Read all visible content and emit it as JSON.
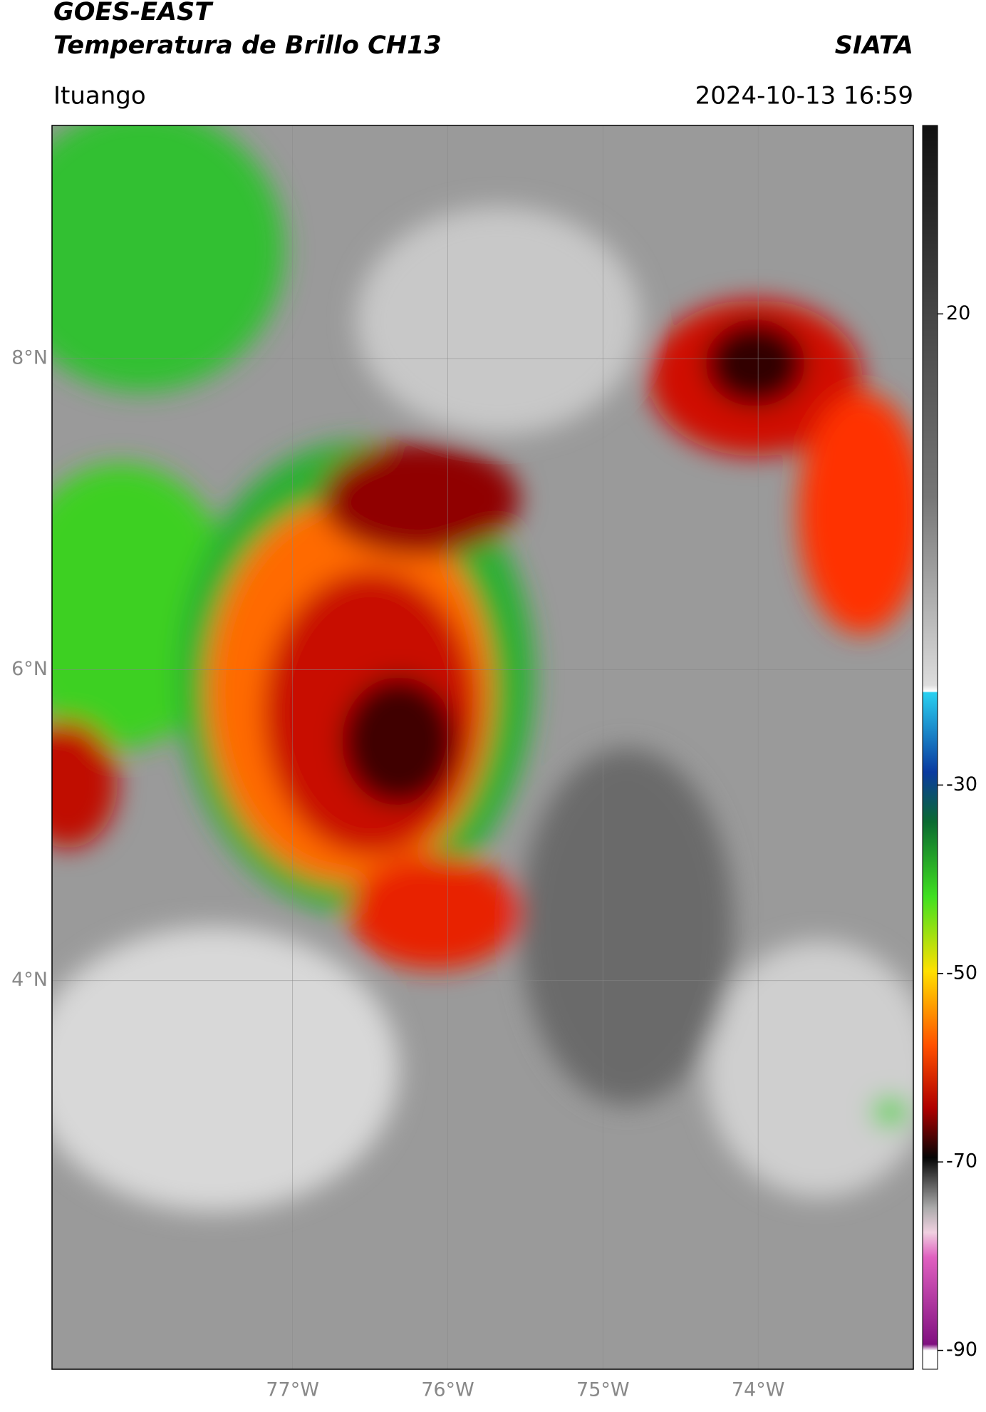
{
  "header": {
    "title_line1": "GOES-EAST",
    "title_line2": "Temperatura de Brillo CH13",
    "organization": "SIATA",
    "location": "Ituango",
    "datetime": "2024-10-13 16:59"
  },
  "map": {
    "xlim": [
      -78.55,
      -73
    ],
    "ylim": [
      1.5,
      9.5
    ],
    "xticks": [
      {
        "value": -77,
        "label": "77°W"
      },
      {
        "value": -76,
        "label": "76°W"
      },
      {
        "value": -75,
        "label": "75°W"
      },
      {
        "value": -74,
        "label": "74°W"
      }
    ],
    "yticks": [
      {
        "value": 8,
        "label": "8°N"
      },
      {
        "value": 6,
        "label": "6°N"
      },
      {
        "value": 4,
        "label": "4°N"
      }
    ],
    "grid": true
  },
  "colorbar": {
    "clim": [
      -92,
      40
    ],
    "ticks": [
      20,
      -30,
      -50,
      -70,
      -90
    ]
  }
}
